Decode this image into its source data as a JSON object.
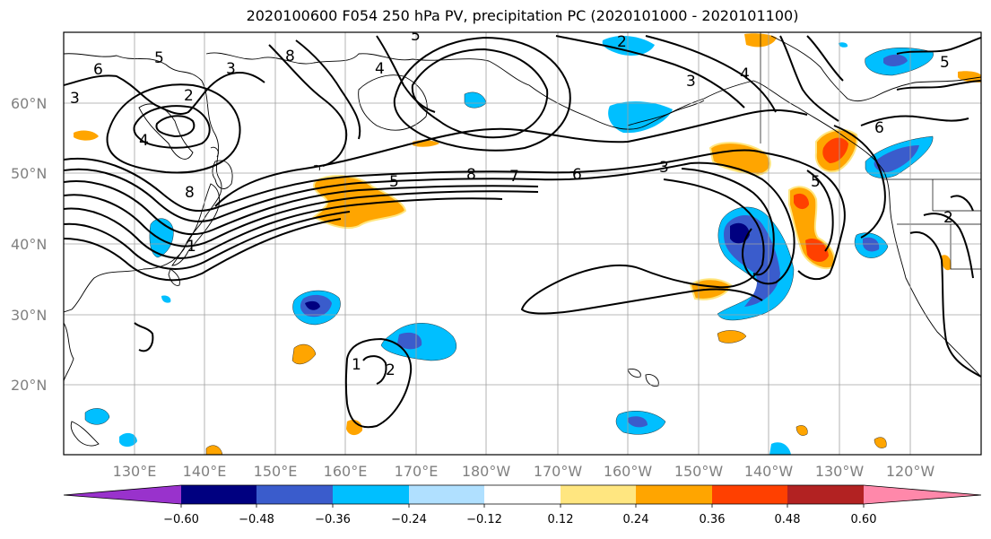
{
  "title": "2020100600 F054 250 hPa PV, precipitation PC (2020101000 - 2020101100)",
  "map": {
    "lat_labels": [
      "60°N",
      "50°N",
      "40°N",
      "30°N",
      "20°N"
    ],
    "lon_labels": [
      "130°E",
      "140°E",
      "150°E",
      "160°E",
      "170°E",
      "180°W",
      "170°W",
      "160°W",
      "150°W",
      "140°W",
      "130°W",
      "120°W"
    ],
    "contour_labels": [
      "6",
      "5",
      "3",
      "2",
      "4",
      "8",
      "3",
      "4",
      "8",
      "5",
      "8",
      "7",
      "6",
      "3",
      "5",
      "6",
      "5",
      "2",
      "1",
      "2",
      "1",
      "3",
      "4",
      "5",
      "2"
    ]
  },
  "colorbar": {
    "ticks": [
      "−0.60",
      "−0.48",
      "−0.36",
      "−0.24",
      "−0.12",
      "0.12",
      "0.24",
      "0.36",
      "0.48",
      "0.60"
    ],
    "colors": [
      "#9932cc",
      "#000080",
      "#3a5ccc",
      "#00bfff",
      "#b0e0ff",
      "#ffffff",
      "#ffe680",
      "#ffa500",
      "#ff4000",
      "#b22222",
      "#ff88aa"
    ]
  },
  "colors": {
    "grid": "#a0a0a0",
    "contour": "#000000",
    "coast": "#000000"
  }
}
